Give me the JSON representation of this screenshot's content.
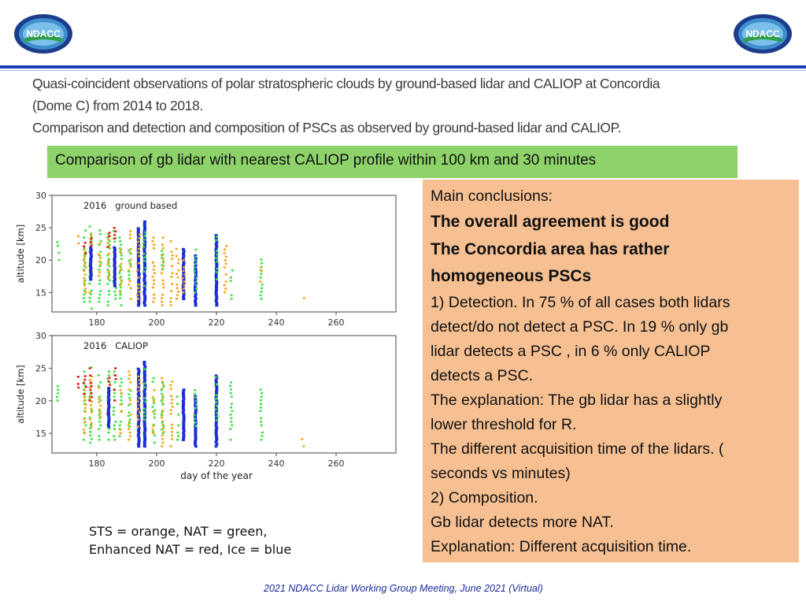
{
  "logos": {
    "text": "NDACC"
  },
  "heading": {
    "line1": "Quasi-coincident observations of polar stratospheric clouds by ground-based lidar and CALIOP at Concordia",
    "line2": "(Dome C) from 2014 to 2018.",
    "line3": "Comparison and detection and composition of PSCs as observed by ground-based lidar and CALIOP."
  },
  "subtitle": "Comparison of gb lidar with nearest CALIOP profile within 100 km and 30 minutes",
  "conclusions": {
    "lines": [
      {
        "text": "Main conclusions:",
        "bold": false
      },
      {
        "text": "The overall agreement is good",
        "bold": true
      },
      {
        "text": "The Concordia area has rather",
        "bold": true
      },
      {
        "text": "homogeneous PSCs",
        "bold": true
      },
      {
        "text": "1) Detection. In 75 % of all cases both lidars",
        "bold": false
      },
      {
        "text": "detect/do not detect a PSC. In 19 % only gb",
        "bold": false
      },
      {
        "text": "lidar detects a PSC , in 6 % only CALIOP",
        "bold": false
      },
      {
        "text": "detects a PSC.",
        "bold": false
      },
      {
        "text": "The explanation: The gb lidar has a slightly",
        "bold": false
      },
      {
        "text": "lower threshold for R.",
        "bold": false
      },
      {
        "text": "The different acquisition time of the lidars. (",
        "bold": false
      },
      {
        "text": "seconds vs minutes)",
        "bold": false
      },
      {
        "text": "2) Composition.",
        "bold": false
      },
      {
        "text": "Gb lidar detects more NAT.",
        "bold": false
      },
      {
        "text": "Explanation:  Different acquisition time.",
        "bold": false
      }
    ]
  },
  "legend_note": {
    "line1": "STS   = orange, NAT = green,",
    "line2": "Enhanced NAT = red, Ice = blue"
  },
  "footer": "2021  NDACC Lidar Working Group Meeting, June 2021 (Virtual)",
  "colors": {
    "STS": "#f2a516",
    "NAT": "#3fe04a",
    "Enhanced NAT": "#e21a1a",
    "Ice": "#1a2ad6",
    "accent": "#1a3fb0"
  },
  "chart_data": [
    {
      "type": "scatter",
      "title": "2016   ground based",
      "xlabel": "",
      "ylabel": "altitude [km]",
      "xlim": [
        165,
        280
      ],
      "ylim": [
        12,
        30
      ],
      "xticks": [
        "180",
        "200",
        "220",
        "240",
        "260"
      ],
      "yticks": [
        "15",
        "20",
        "25",
        "30"
      ],
      "columns": [
        {
          "day": 167,
          "ranges": [
            [
              20,
              23,
              "NAT"
            ]
          ]
        },
        {
          "day": 174,
          "ranges": [
            [
              22,
              24,
              "STS"
            ]
          ]
        },
        {
          "day": 176,
          "ranges": [
            [
              13,
              25,
              "NAT"
            ],
            [
              15,
              22,
              "STS"
            ],
            [
              21,
              23,
              "Enhanced NAT"
            ]
          ]
        },
        {
          "day": 178,
          "ranges": [
            [
              12.5,
              25.5,
              "NAT"
            ],
            [
              15,
              24,
              "STS"
            ],
            [
              20,
              24,
              "Enhanced NAT"
            ],
            [
              17,
              22,
              "Ice"
            ]
          ]
        },
        {
          "day": 181,
          "ranges": [
            [
              13,
              25,
              "NAT"
            ],
            [
              17,
              23,
              "STS"
            ]
          ]
        },
        {
          "day": 184,
          "ranges": [
            [
              13,
              25,
              "NAT"
            ],
            [
              16,
              24,
              "STS"
            ],
            [
              22,
              25,
              "Enhanced NAT"
            ]
          ]
        },
        {
          "day": 186,
          "ranges": [
            [
              14,
              25,
              "NAT"
            ],
            [
              20,
              25,
              "Enhanced NAT"
            ],
            [
              16,
              22,
              "Ice"
            ]
          ]
        },
        {
          "day": 188,
          "ranges": [
            [
              13,
              24,
              "NAT"
            ],
            [
              15,
              22,
              "STS"
            ]
          ]
        },
        {
          "day": 191,
          "ranges": [
            [
              14,
              25,
              "STS"
            ],
            [
              16,
              22,
              "NAT"
            ]
          ]
        },
        {
          "day": 194,
          "ranges": [
            [
              13,
              25,
              "Ice"
            ],
            [
              14,
              24,
              "STS"
            ]
          ]
        },
        {
          "day": 196,
          "ranges": [
            [
              13,
              26,
              "Ice"
            ],
            [
              16,
              25,
              "NAT"
            ]
          ]
        },
        {
          "day": 199,
          "ranges": [
            [
              13,
              24,
              "STS"
            ]
          ]
        },
        {
          "day": 202,
          "ranges": [
            [
              13,
              24,
              "STS"
            ],
            [
              17,
              22,
              "NAT"
            ]
          ]
        },
        {
          "day": 205,
          "ranges": [
            [
              13,
              23,
              "STS"
            ]
          ]
        },
        {
          "day": 207,
          "ranges": [
            [
              14,
              22,
              "STS"
            ]
          ]
        },
        {
          "day": 209,
          "ranges": [
            [
              14,
              22,
              "Ice"
            ],
            [
              15,
              20,
              "STS"
            ]
          ]
        },
        {
          "day": 213,
          "ranges": [
            [
              13,
              21,
              "Ice"
            ],
            [
              15,
              22,
              "NAT"
            ]
          ]
        },
        {
          "day": 220,
          "ranges": [
            [
              13,
              24,
              "Ice"
            ],
            [
              17,
              24,
              "NAT"
            ]
          ]
        },
        {
          "day": 223,
          "ranges": [
            [
              15,
              23,
              "STS"
            ]
          ]
        },
        {
          "day": 225,
          "ranges": [
            [
              14,
              23,
              "NAT"
            ]
          ]
        },
        {
          "day": 235,
          "ranges": [
            [
              14,
              21,
              "NAT"
            ],
            [
              15,
              19,
              "STS"
            ]
          ]
        },
        {
          "day": 249,
          "ranges": [
            [
              13,
              14.5,
              "STS"
            ]
          ]
        }
      ]
    },
    {
      "type": "scatter",
      "title": "2016   CALIOP",
      "xlabel": "day of the year",
      "ylabel": "altitude [km]",
      "xlim": [
        165,
        280
      ],
      "ylim": [
        12,
        30
      ],
      "xticks": [
        "180",
        "200",
        "220",
        "240",
        "260"
      ],
      "yticks": [
        "15",
        "20",
        "25",
        "30"
      ],
      "columns": [
        {
          "day": 167,
          "ranges": [
            [
              20,
              23,
              "NAT"
            ]
          ]
        },
        {
          "day": 174,
          "ranges": [
            [
              22,
              24,
              "Enhanced NAT"
            ]
          ]
        },
        {
          "day": 176,
          "ranges": [
            [
              14,
              25,
              "NAT"
            ],
            [
              15,
              22,
              "STS"
            ],
            [
              21,
              24,
              "Enhanced NAT"
            ]
          ]
        },
        {
          "day": 178,
          "ranges": [
            [
              13,
              25.5,
              "NAT"
            ],
            [
              16,
              24,
              "STS"
            ],
            [
              20,
              25,
              "Enhanced NAT"
            ]
          ]
        },
        {
          "day": 181,
          "ranges": [
            [
              14,
              24,
              "NAT"
            ],
            [
              17,
              23,
              "STS"
            ]
          ]
        },
        {
          "day": 184,
          "ranges": [
            [
              14,
              25,
              "NAT"
            ],
            [
              18,
              24,
              "Enhanced NAT"
            ],
            [
              16,
              22,
              "Ice"
            ]
          ]
        },
        {
          "day": 186,
          "ranges": [
            [
              14,
              25,
              "NAT"
            ],
            [
              20,
              25,
              "Enhanced NAT"
            ]
          ]
        },
        {
          "day": 188,
          "ranges": [
            [
              14,
              24,
              "NAT"
            ],
            [
              15,
              22,
              "STS"
            ]
          ]
        },
        {
          "day": 191,
          "ranges": [
            [
              14,
              25,
              "STS"
            ],
            [
              16,
              22,
              "NAT"
            ]
          ]
        },
        {
          "day": 194,
          "ranges": [
            [
              13,
              25,
              "Ice"
            ],
            [
              16,
              24,
              "STS"
            ]
          ]
        },
        {
          "day": 196,
          "ranges": [
            [
              13,
              26,
              "Ice"
            ],
            [
              16,
              25,
              "NAT"
            ]
          ]
        },
        {
          "day": 199,
          "ranges": [
            [
              13,
              24,
              "NAT"
            ],
            [
              15,
              22,
              "STS"
            ]
          ]
        },
        {
          "day": 202,
          "ranges": [
            [
              13,
              24,
              "STS"
            ],
            [
              15,
              23,
              "NAT"
            ]
          ]
        },
        {
          "day": 205,
          "ranges": [
            [
              13,
              23,
              "STS"
            ]
          ]
        },
        {
          "day": 207,
          "ranges": [
            [
              14,
              22,
              "NAT"
            ]
          ]
        },
        {
          "day": 209,
          "ranges": [
            [
              14,
              22,
              "Ice"
            ]
          ]
        },
        {
          "day": 213,
          "ranges": [
            [
              13,
              21,
              "Ice"
            ],
            [
              15,
              22,
              "NAT"
            ]
          ]
        },
        {
          "day": 220,
          "ranges": [
            [
              13,
              24,
              "Ice"
            ],
            [
              17,
              24,
              "NAT"
            ]
          ]
        },
        {
          "day": 225,
          "ranges": [
            [
              14,
              23,
              "NAT"
            ]
          ]
        },
        {
          "day": 235,
          "ranges": [
            [
              14,
              22,
              "NAT"
            ]
          ]
        },
        {
          "day": 249,
          "ranges": [
            [
              13,
              14.5,
              "STS"
            ]
          ]
        }
      ]
    }
  ]
}
